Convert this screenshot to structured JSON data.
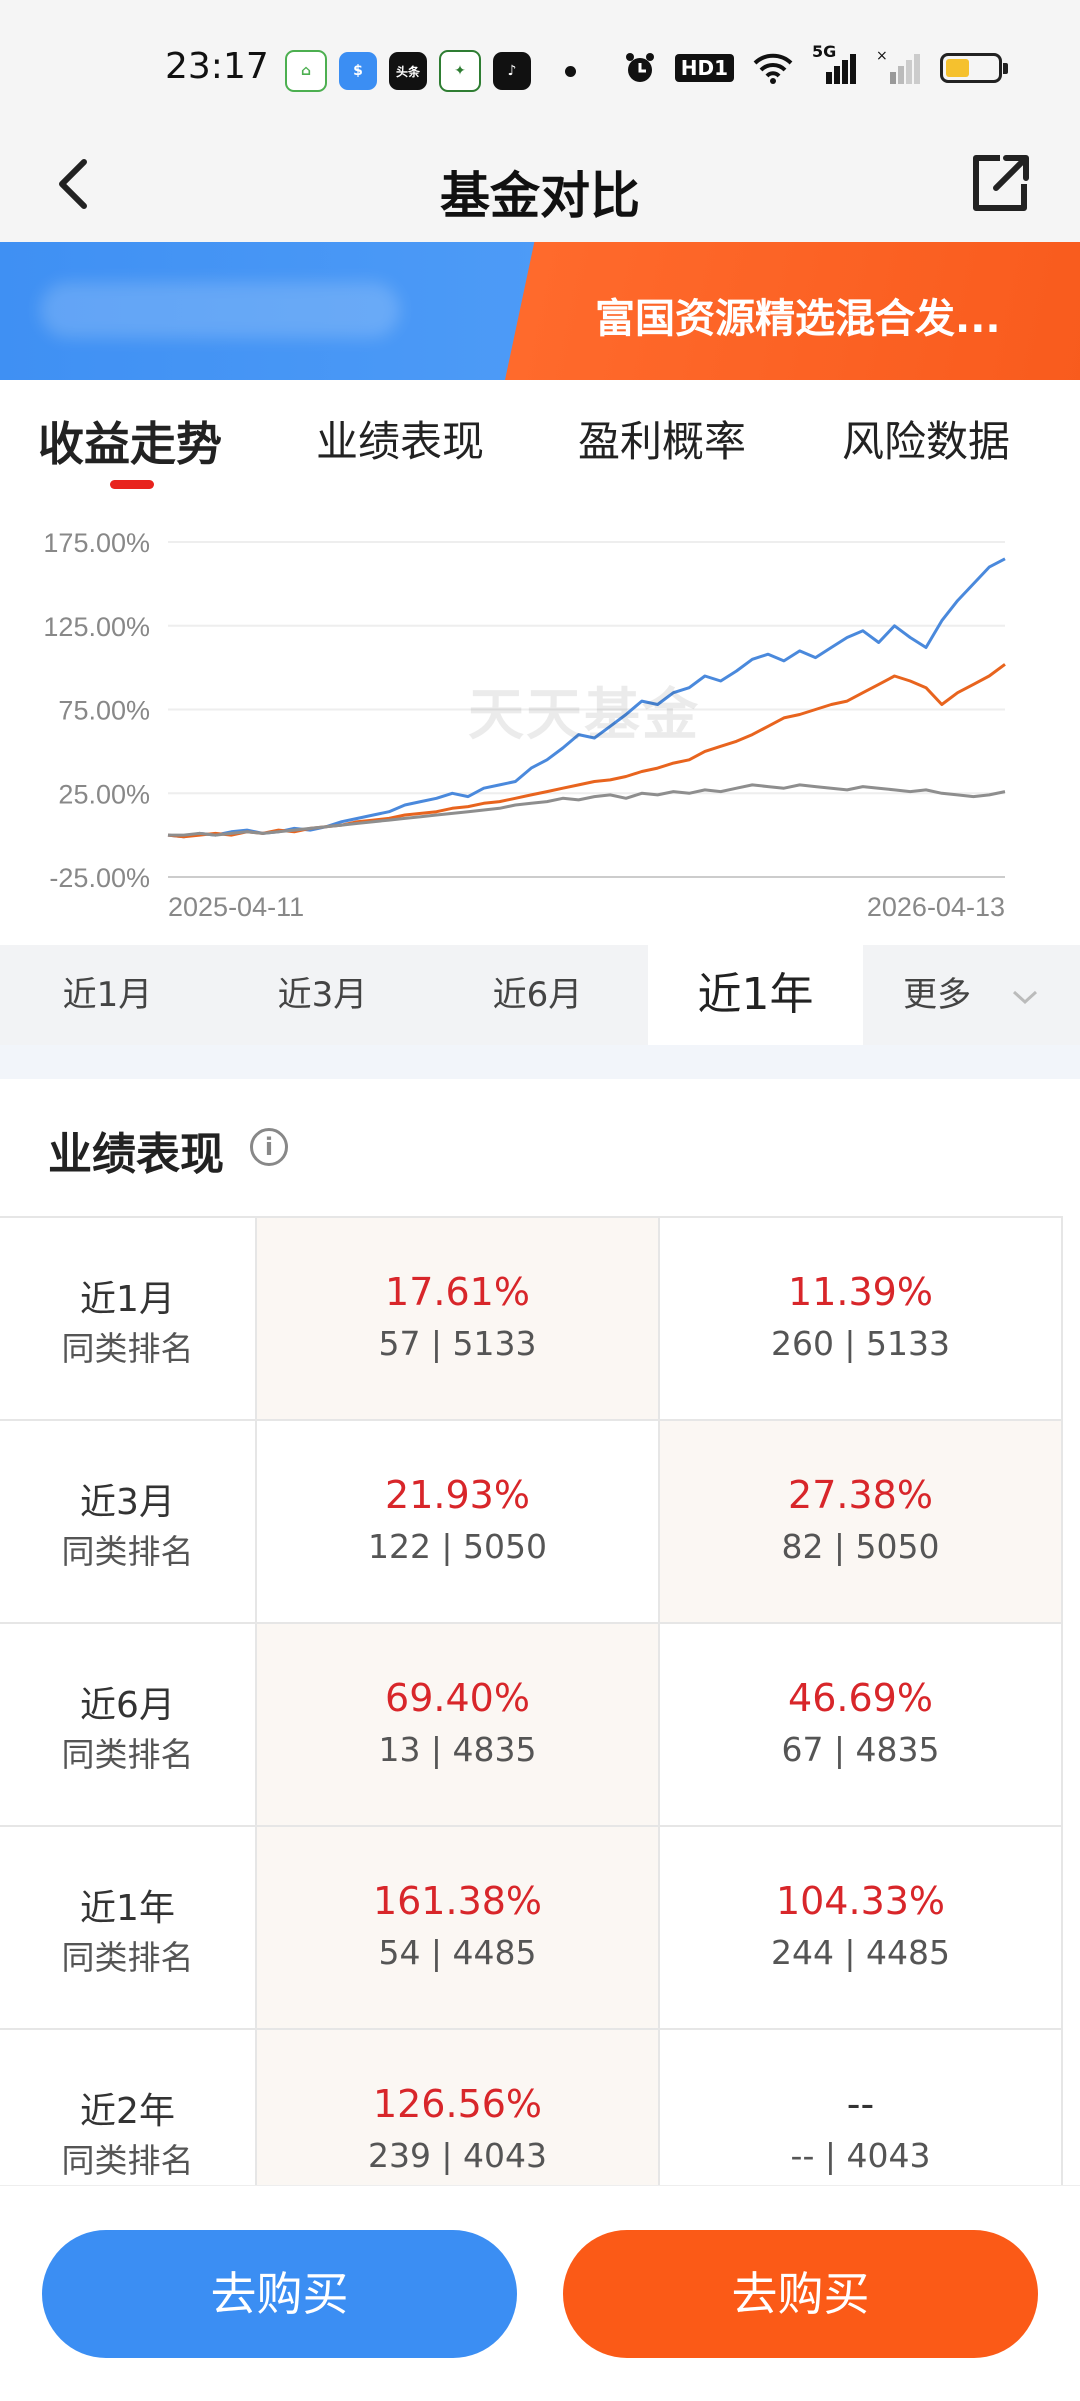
{
  "status_bar": {
    "time": "23:17",
    "apps": [
      {
        "icon": "home-app-icon",
        "color": "#ffffff",
        "text": "⌂"
      },
      {
        "icon": "fund-app-icon",
        "color": "#3b8ef3",
        "text": "$"
      },
      {
        "icon": "toutiao-app-icon",
        "color": "#e53935",
        "text": "头条"
      },
      {
        "icon": "leaf-app-icon",
        "color": "#2e7d32",
        "text": "✦"
      },
      {
        "icon": "tiktok-app-icon",
        "color": "#111111",
        "text": "♪"
      }
    ],
    "hd_label": "HD1",
    "network_label": "5G",
    "battery_level": 0.45
  },
  "header": {
    "title": "基金对比",
    "back_icon": "chevron-left-icon",
    "share_icon": "share-icon"
  },
  "banner": {
    "right_fund_name": "富国资源精选混合发..."
  },
  "tabs": [
    {
      "label": "收益走势",
      "active": true
    },
    {
      "label": "业绩表现",
      "active": false
    },
    {
      "label": "盈利概率",
      "active": false
    },
    {
      "label": "风险数据",
      "active": false
    }
  ],
  "chart_data": {
    "type": "line",
    "y_tick_labels": [
      "175.00%",
      "125.00%",
      "75.00%",
      "25.00%",
      "-25.00%"
    ],
    "y_ticks": [
      175,
      125,
      75,
      25,
      -25
    ],
    "ylim": [
      -25,
      175
    ],
    "x_start_label": "2025-04-11",
    "x_end_label": "2026-04-13",
    "watermark": "天天基金",
    "grid": true,
    "series": [
      {
        "color": "#4a89dc",
        "values": [
          0,
          -1,
          1,
          0,
          2,
          3,
          1,
          2,
          4,
          3,
          5,
          8,
          10,
          12,
          14,
          18,
          20,
          22,
          25,
          23,
          28,
          30,
          32,
          40,
          45,
          52,
          60,
          58,
          65,
          72,
          80,
          78,
          85,
          88,
          95,
          92,
          98,
          105,
          108,
          104,
          110,
          106,
          112,
          118,
          122,
          115,
          125,
          118,
          112,
          128,
          140,
          150,
          160,
          165
        ]
      },
      {
        "color": "#e8641e",
        "values": [
          0,
          -1,
          0,
          1,
          0,
          2,
          1,
          3,
          2,
          4,
          5,
          6,
          8,
          9,
          10,
          12,
          13,
          14,
          16,
          17,
          19,
          20,
          22,
          24,
          26,
          28,
          30,
          32,
          33,
          35,
          38,
          40,
          43,
          45,
          50,
          53,
          56,
          60,
          65,
          70,
          72,
          75,
          78,
          80,
          85,
          90,
          95,
          92,
          88,
          78,
          85,
          90,
          95,
          102
        ]
      },
      {
        "color": "#8e8e8e",
        "values": [
          0,
          0,
          1,
          0,
          1,
          2,
          1,
          2,
          3,
          4,
          5,
          6,
          7,
          8,
          9,
          10,
          11,
          12,
          13,
          14,
          15,
          16,
          18,
          19,
          20,
          22,
          21,
          23,
          24,
          22,
          25,
          24,
          26,
          25,
          27,
          26,
          28,
          30,
          29,
          28,
          30,
          29,
          28,
          27,
          29,
          28,
          27,
          26,
          27,
          25,
          24,
          23,
          24,
          26
        ]
      }
    ]
  },
  "periods": [
    {
      "label": "近1月",
      "active": false
    },
    {
      "label": "近3月",
      "active": false
    },
    {
      "label": "近6月",
      "active": false
    },
    {
      "label": "近1年",
      "active": true
    },
    {
      "label": "更多",
      "active": false
    }
  ],
  "performance": {
    "title": "业绩表现",
    "info_icon": "info-icon",
    "rank_label": "同类排名",
    "rows": [
      {
        "period": "近1月",
        "a_return": "17.61%",
        "a_rank": "57 | 5133",
        "b_return": "11.39%",
        "b_rank": "260 | 5133",
        "shade": "a"
      },
      {
        "period": "近3月",
        "a_return": "21.93%",
        "a_rank": "122 | 5050",
        "b_return": "27.38%",
        "b_rank": "82 | 5050",
        "shade": "b"
      },
      {
        "period": "近6月",
        "a_return": "69.40%",
        "a_rank": "13 | 4835",
        "b_return": "46.69%",
        "b_rank": "67 | 4835",
        "shade": "a"
      },
      {
        "period": "近1年",
        "a_return": "161.38%",
        "a_rank": "54 | 4485",
        "b_return": "104.33%",
        "b_rank": "244 | 4485",
        "shade": "a"
      },
      {
        "period": "近2年",
        "a_return": "126.56%",
        "a_rank": "239 | 4043",
        "b_return": "--",
        "b_rank": "-- | 4043",
        "shade": "a"
      }
    ]
  },
  "bottom": {
    "buy_left_label": "去购买",
    "buy_right_label": "去购买"
  }
}
